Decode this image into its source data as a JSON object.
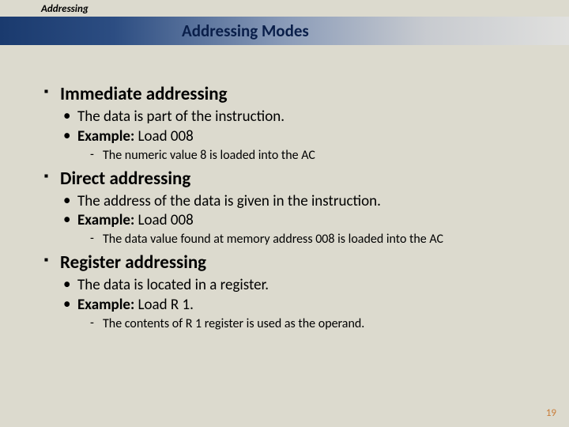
{
  "breadcrumb": "Addressing",
  "title": "Addressing Modes",
  "sections": [
    {
      "heading": "Immediate addressing",
      "bullets": [
        {
          "text": "The data is part of the instruction."
        },
        {
          "bold": "Example:",
          "text": " Load 008"
        }
      ],
      "sub": "The numeric value 8 is loaded into the AC"
    },
    {
      "heading": "Direct addressing",
      "bullets": [
        {
          "text": "The address of the data is given in the instruction."
        },
        {
          "bold": "Example:",
          "text": " Load 008"
        }
      ],
      "sub": "The data value found at memory address 008 is loaded into the AC"
    },
    {
      "heading": "Register addressing",
      "bullets": [
        {
          "text": "The data is located in a register."
        },
        {
          "bold": "Example:",
          "text": " Load R 1."
        }
      ],
      "sub": "The contents of R 1 register is used as the operand."
    }
  ],
  "page_number": "19",
  "colors": {
    "background": "#dcdace",
    "title_text": "#0a1f4a",
    "page_num": "#c97d3a"
  },
  "fontsizes": {
    "breadcrumb": 13,
    "title": 21,
    "h1": 23,
    "b1": 19,
    "b2": 16,
    "page_num": 13
  }
}
